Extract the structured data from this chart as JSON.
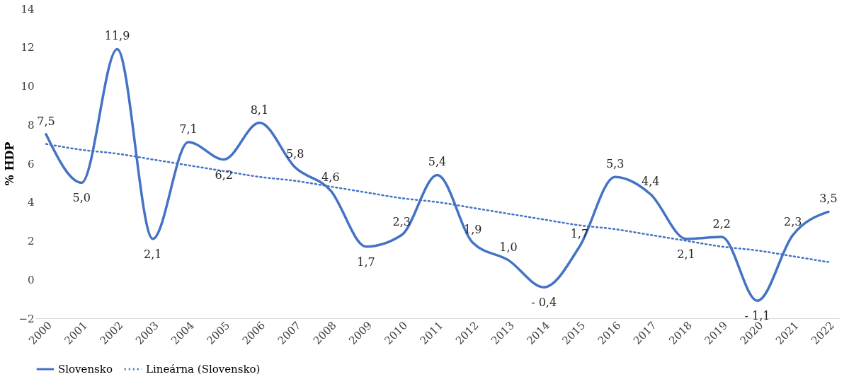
{
  "chart_data": {
    "type": "line",
    "ylabel": "% HDP",
    "categories": [
      "2000",
      "2001",
      "2002",
      "2003",
      "2004",
      "2005",
      "2006",
      "2007",
      "2008",
      "2009",
      "2010",
      "2011",
      "2012",
      "2013",
      "2014",
      "2015",
      "2016",
      "2017",
      "2018",
      "2019",
      "2020",
      "2021",
      "2022"
    ],
    "series": [
      {
        "name": "Slovensko",
        "color": "#4472c4",
        "line_style": "solid",
        "values": [
          7.5,
          5.0,
          11.9,
          2.1,
          7.1,
          6.2,
          8.1,
          5.8,
          4.6,
          1.7,
          2.3,
          5.4,
          1.9,
          1.0,
          -0.4,
          1.7,
          5.3,
          4.4,
          2.1,
          2.2,
          -1.1,
          2.3,
          3.5
        ],
        "value_labels": [
          "7,5",
          "5,0",
          "11,9",
          "2,1",
          "7,1",
          "6,2",
          "8,1",
          "5,8",
          "4,6",
          "1,7",
          "2,3",
          "5,4",
          "1,9",
          "1,0",
          "- 0,4",
          "1,7",
          "5,3",
          "4,4",
          "2,1",
          "2,2",
          "- 1,1",
          "2,3",
          "3,5"
        ]
      },
      {
        "name": "Lineárna (Slovensko)",
        "type": "line",
        "color": "#4472c4",
        "line_style": "dotted",
        "values": [
          7.0,
          6.7,
          6.5,
          6.2,
          5.9,
          5.6,
          5.3,
          5.1,
          4.8,
          4.5,
          4.2,
          4.0,
          3.7,
          3.4,
          3.1,
          2.8,
          2.6,
          2.3,
          2.0,
          1.7,
          1.5,
          1.2,
          0.9
        ]
      }
    ],
    "ylim": [
      -2,
      14
    ],
    "yticks": [
      -2,
      0,
      2,
      4,
      6,
      8,
      10,
      12,
      14
    ],
    "grid": false,
    "legend": "bottom",
    "marker": "none"
  }
}
